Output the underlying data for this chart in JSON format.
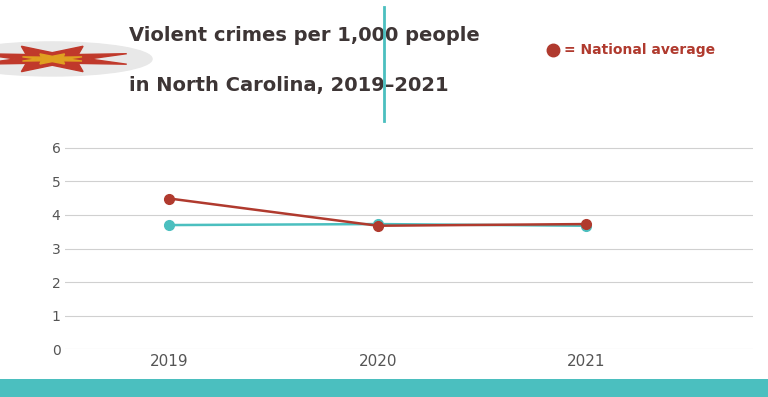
{
  "title_line1": "Violent crimes per 1,000 people",
  "title_line2": "in North Carolina, 2019–2021",
  "years": [
    2019,
    2020,
    2021
  ],
  "nc_values": [
    3.7,
    3.73,
    3.68
  ],
  "national_values": [
    4.49,
    3.68,
    3.73
  ],
  "nc_color": "#4bbfbf",
  "national_color": "#b03a2e",
  "legend_label": "= National average",
  "ylim": [
    0,
    6.5
  ],
  "yticks": [
    0,
    1,
    2,
    3,
    4,
    5,
    6
  ],
  "background_color": "#ffffff",
  "plot_bg_color": "#ffffff",
  "grid_color": "#d0d0d0",
  "title_color": "#3d3535",
  "tick_color": "#555555",
  "bottom_bar_color": "#4bbfbf",
  "marker_size": 7,
  "line_width": 1.8,
  "divider_color": "#4bbfbf",
  "star_outer_color": "#c0392b",
  "star_inner_color": "#e0a020",
  "circle_bg_color": "#e8e8e8"
}
